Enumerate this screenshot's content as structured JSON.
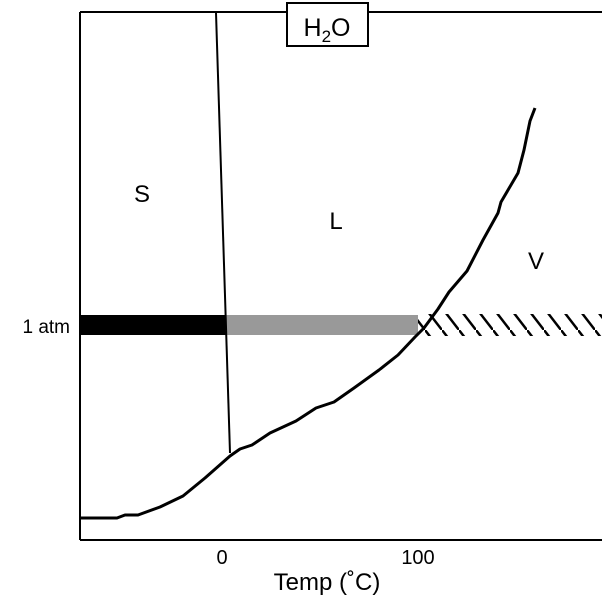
{
  "diagram": {
    "title": {
      "main": "H",
      "subscript": "2",
      "suffix": "O"
    },
    "regions": {
      "solid": "S",
      "liquid": "L",
      "vapor": "V"
    },
    "pressure_label": "1 atm",
    "x_ticks": [
      "0",
      "100"
    ],
    "x_axis_label": "Temp (˚C)",
    "colors": {
      "line": "#000000",
      "solid_bar": "#000000",
      "liquid_bar": "#999999",
      "vapor_hatch": "#000000"
    }
  }
}
